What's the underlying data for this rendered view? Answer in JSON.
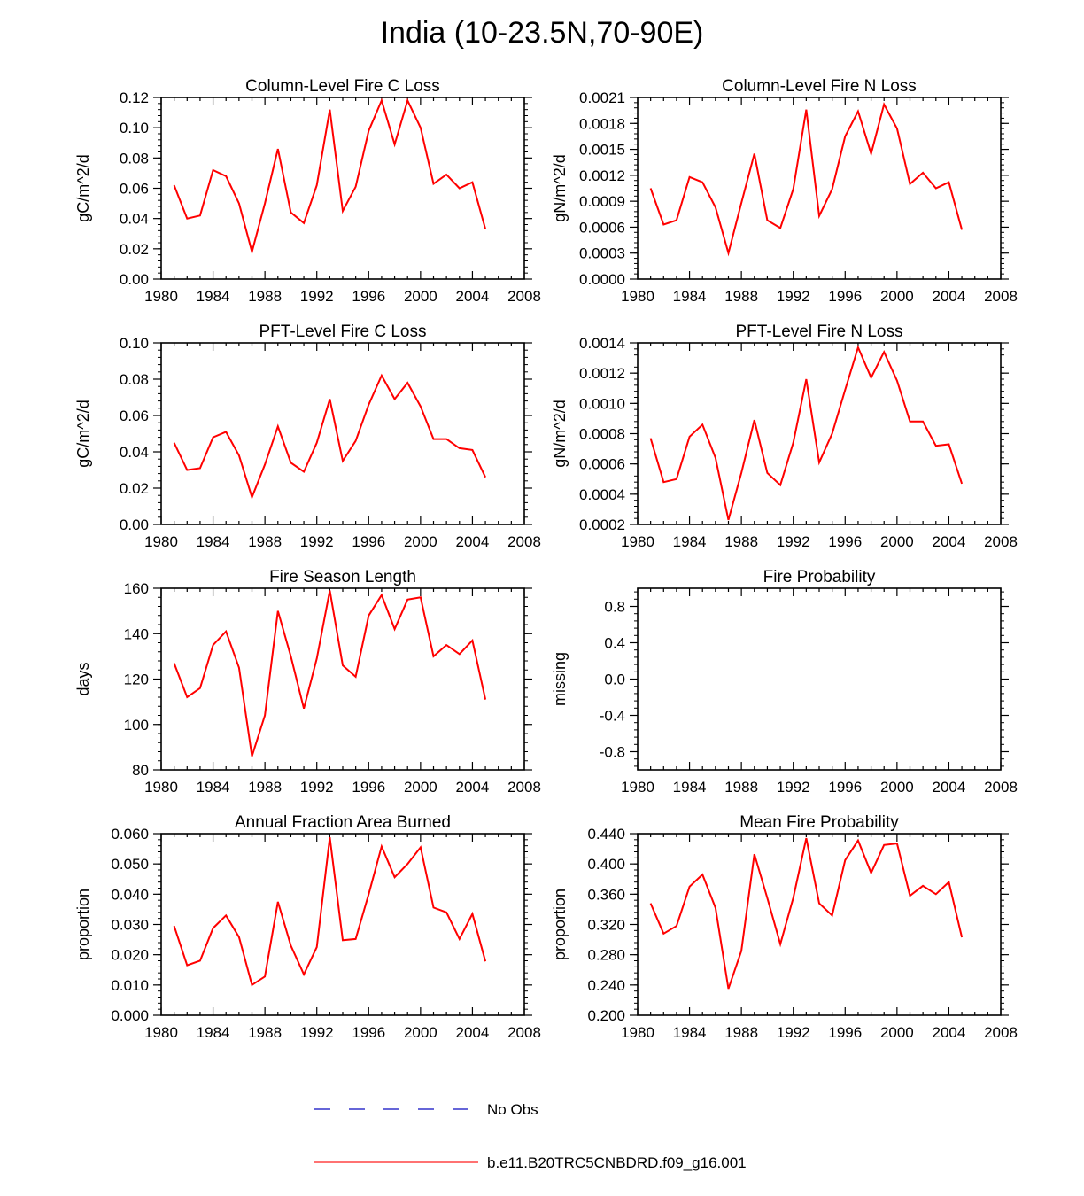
{
  "title": "India (10-23.5N,70-90E)",
  "colors": {
    "model_line": "#ff0000",
    "obs_line": "#3333cc",
    "axis": "#000000"
  },
  "legend": [
    {
      "label": "No Obs",
      "style": "dashed",
      "color": "#3333cc"
    },
    {
      "label": "b.e11.B20TRC5CNBDRD.f09_g16.001",
      "style": "solid",
      "color": "#ff4444"
    }
  ],
  "chart_data": [
    {
      "type": "line",
      "title": "Column-Level Fire C Loss",
      "ylabel": "gC/m^2/d",
      "xlim": [
        1980,
        2008
      ],
      "ylim": [
        0.0,
        0.12
      ],
      "xticks": [
        "1980",
        "1984",
        "1988",
        "1992",
        "1996",
        "2000",
        "2004",
        "2008"
      ],
      "yticks": [
        "0.00",
        "0.02",
        "0.04",
        "0.06",
        "0.08",
        "0.10",
        "0.12"
      ],
      "x": [
        1981,
        1982,
        1983,
        1984,
        1985,
        1986,
        1987,
        1988,
        1989,
        1990,
        1991,
        1992,
        1993,
        1994,
        1995,
        1996,
        1997,
        1998,
        1999,
        2000,
        2001,
        2002,
        2003,
        2004,
        2005
      ],
      "series": [
        {
          "name": "b.e11.B20TRC5CNBDRD.f09_g16.001",
          "values": [
            0.062,
            0.04,
            0.042,
            0.072,
            0.068,
            0.05,
            0.018,
            0.05,
            0.086,
            0.044,
            0.037,
            0.062,
            0.112,
            0.045,
            0.061,
            0.098,
            0.118,
            0.089,
            0.118,
            0.1,
            0.063,
            0.069,
            0.06,
            0.064,
            0.033
          ]
        }
      ]
    },
    {
      "type": "line",
      "title": "Column-Level Fire N Loss",
      "ylabel": "gN/m^2/d",
      "xlim": [
        1980,
        2008
      ],
      "ylim": [
        0.0,
        0.0021
      ],
      "xticks": [
        "1980",
        "1984",
        "1988",
        "1992",
        "1996",
        "2000",
        "2004",
        "2008"
      ],
      "yticks": [
        "0.0000",
        "0.0003",
        "0.0006",
        "0.0009",
        "0.0012",
        "0.0015",
        "0.0018",
        "0.0021"
      ],
      "x": [
        1981,
        1982,
        1983,
        1984,
        1985,
        1986,
        1987,
        1988,
        1989,
        1990,
        1991,
        1992,
        1993,
        1994,
        1995,
        1996,
        1997,
        1998,
        1999,
        2000,
        2001,
        2002,
        2003,
        2004,
        2005
      ],
      "series": [
        {
          "name": "b.e11.B20TRC5CNBDRD.f09_g16.001",
          "values": [
            0.00105,
            0.00063,
            0.00068,
            0.00118,
            0.00112,
            0.00083,
            0.0003,
            0.00088,
            0.00145,
            0.00068,
            0.00059,
            0.00104,
            0.00196,
            0.00073,
            0.00104,
            0.00165,
            0.00194,
            0.00145,
            0.00202,
            0.00174,
            0.0011,
            0.00123,
            0.00105,
            0.00112,
            0.00057
          ]
        }
      ]
    },
    {
      "type": "line",
      "title": "PFT-Level Fire C Loss",
      "ylabel": "gC/m^2/d",
      "xlim": [
        1980,
        2008
      ],
      "ylim": [
        0.0,
        0.1
      ],
      "xticks": [
        "1980",
        "1984",
        "1988",
        "1992",
        "1996",
        "2000",
        "2004",
        "2008"
      ],
      "yticks": [
        "0.00",
        "0.02",
        "0.04",
        "0.06",
        "0.08",
        "0.10"
      ],
      "x": [
        1981,
        1982,
        1983,
        1984,
        1985,
        1986,
        1987,
        1988,
        1989,
        1990,
        1991,
        1992,
        1993,
        1994,
        1995,
        1996,
        1997,
        1998,
        1999,
        2000,
        2001,
        2002,
        2003,
        2004,
        2005
      ],
      "series": [
        {
          "name": "b.e11.B20TRC5CNBDRD.f09_g16.001",
          "values": [
            0.045,
            0.03,
            0.031,
            0.048,
            0.051,
            0.038,
            0.015,
            0.033,
            0.054,
            0.034,
            0.029,
            0.045,
            0.069,
            0.035,
            0.046,
            0.066,
            0.082,
            0.069,
            0.078,
            0.065,
            0.047,
            0.047,
            0.042,
            0.041,
            0.026
          ]
        }
      ]
    },
    {
      "type": "line",
      "title": "PFT-Level Fire N Loss",
      "ylabel": "gN/m^2/d",
      "xlim": [
        1980,
        2008
      ],
      "ylim": [
        0.0002,
        0.0014
      ],
      "xticks": [
        "1980",
        "1984",
        "1988",
        "1992",
        "1996",
        "2000",
        "2004",
        "2008"
      ],
      "yticks": [
        "0.0002",
        "0.0004",
        "0.0006",
        "0.0008",
        "0.0010",
        "0.0012",
        "0.0014"
      ],
      "x": [
        1981,
        1982,
        1983,
        1984,
        1985,
        1986,
        1987,
        1988,
        1989,
        1990,
        1991,
        1992,
        1993,
        1994,
        1995,
        1996,
        1997,
        1998,
        1999,
        2000,
        2001,
        2002,
        2003,
        2004,
        2005
      ],
      "series": [
        {
          "name": "b.e11.B20TRC5CNBDRD.f09_g16.001",
          "values": [
            0.00077,
            0.00048,
            0.0005,
            0.00078,
            0.00086,
            0.00064,
            0.00023,
            0.00054,
            0.00089,
            0.00054,
            0.00046,
            0.00074,
            0.00116,
            0.00061,
            0.0008,
            0.00109,
            0.00137,
            0.00117,
            0.00134,
            0.00115,
            0.00088,
            0.00088,
            0.00072,
            0.00073,
            0.00047
          ]
        }
      ]
    },
    {
      "type": "line",
      "title": "Fire Season Length",
      "ylabel": "days",
      "xlim": [
        1980,
        2008
      ],
      "ylim": [
        80,
        160
      ],
      "xticks": [
        "1980",
        "1984",
        "1988",
        "1992",
        "1996",
        "2000",
        "2004",
        "2008"
      ],
      "yticks": [
        "80",
        "100",
        "120",
        "140",
        "160"
      ],
      "x": [
        1981,
        1982,
        1983,
        1984,
        1985,
        1986,
        1987,
        1988,
        1989,
        1990,
        1991,
        1992,
        1993,
        1994,
        1995,
        1996,
        1997,
        1998,
        1999,
        2000,
        2001,
        2002,
        2003,
        2004,
        2005
      ],
      "series": [
        {
          "name": "b.e11.B20TRC5CNBDRD.f09_g16.001",
          "values": [
            127,
            112,
            116,
            135,
            141,
            125,
            86,
            104,
            150,
            130,
            107,
            129,
            159,
            126,
            121,
            148,
            157,
            142,
            155,
            156,
            130,
            135,
            131,
            137,
            111
          ]
        }
      ]
    },
    {
      "type": "line",
      "title": "Fire Probability",
      "ylabel": "missing",
      "xlim": [
        1980,
        2008
      ],
      "ylim": [
        -1.0,
        1.0
      ],
      "xticks": [
        "1980",
        "1984",
        "1988",
        "1992",
        "1996",
        "2000",
        "2004",
        "2008"
      ],
      "yticks": [
        "-0.8",
        "-0.4",
        "0.0",
        "0.4",
        "0.8"
      ],
      "x": [],
      "series": []
    },
    {
      "type": "line",
      "title": "Annual Fraction Area Burned",
      "ylabel": "proportion",
      "xlim": [
        1980,
        2008
      ],
      "ylim": [
        0.0,
        0.06
      ],
      "xticks": [
        "1980",
        "1984",
        "1988",
        "1992",
        "1996",
        "2000",
        "2004",
        "2008"
      ],
      "yticks": [
        "0.000",
        "0.010",
        "0.020",
        "0.030",
        "0.040",
        "0.050",
        "0.060"
      ],
      "x": [
        1981,
        1982,
        1983,
        1984,
        1985,
        1986,
        1987,
        1988,
        1989,
        1990,
        1991,
        1992,
        1993,
        1994,
        1995,
        1996,
        1997,
        1998,
        1999,
        2000,
        2001,
        2002,
        2003,
        2004,
        2005
      ],
      "series": [
        {
          "name": "b.e11.B20TRC5CNBDRD.f09_g16.001",
          "values": [
            0.0295,
            0.0165,
            0.018,
            0.0288,
            0.033,
            0.0258,
            0.01,
            0.0128,
            0.0375,
            0.023,
            0.0135,
            0.0225,
            0.0588,
            0.0248,
            0.0252,
            0.04,
            0.0558,
            0.0456,
            0.05,
            0.0555,
            0.0356,
            0.034,
            0.0252,
            0.0335,
            0.0178
          ]
        }
      ]
    },
    {
      "type": "line",
      "title": "Mean Fire Probability",
      "ylabel": "proportion",
      "xlim": [
        1980,
        2008
      ],
      "ylim": [
        0.2,
        0.44
      ],
      "xticks": [
        "1980",
        "1984",
        "1988",
        "1992",
        "1996",
        "2000",
        "2004",
        "2008"
      ],
      "yticks": [
        "0.200",
        "0.240",
        "0.280",
        "0.320",
        "0.360",
        "0.400",
        "0.440"
      ],
      "x": [
        1981,
        1982,
        1983,
        1984,
        1985,
        1986,
        1987,
        1988,
        1989,
        1990,
        1991,
        1992,
        1993,
        1994,
        1995,
        1996,
        1997,
        1998,
        1999,
        2000,
        2001,
        2002,
        2003,
        2004,
        2005
      ],
      "series": [
        {
          "name": "b.e11.B20TRC5CNBDRD.f09_g16.001",
          "values": [
            0.348,
            0.308,
            0.318,
            0.37,
            0.386,
            0.342,
            0.235,
            0.285,
            0.413,
            0.355,
            0.294,
            0.355,
            0.434,
            0.348,
            0.332,
            0.405,
            0.431,
            0.388,
            0.425,
            0.427,
            0.358,
            0.371,
            0.36,
            0.376,
            0.303
          ]
        }
      ]
    }
  ]
}
